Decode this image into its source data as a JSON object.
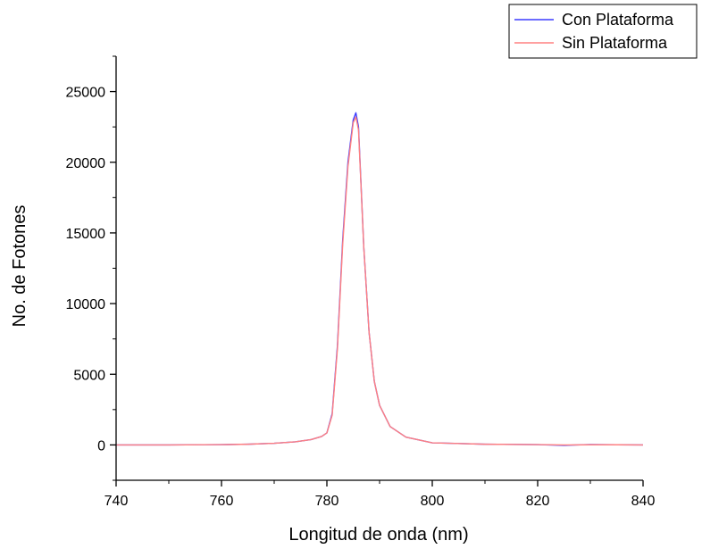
{
  "chart_data": {
    "type": "line",
    "title": "",
    "xlabel": "Longitud de onda (nm)",
    "ylabel": "No. de Fotones",
    "xlim": [
      740,
      840
    ],
    "ylim": [
      -2500,
      27500
    ],
    "xticks": [
      "740",
      "760",
      "780",
      "800",
      "820",
      "840"
    ],
    "yticks": [
      "0",
      "5000",
      "10000",
      "15000",
      "20000",
      "25000"
    ],
    "grid": false,
    "legend_position": "top-right",
    "series": [
      {
        "name": "Con Plataforma",
        "color": "#3b3bff",
        "x": [
          740,
          750,
          760,
          765,
          770,
          774,
          777,
          779,
          780,
          781,
          782,
          783,
          784,
          785,
          785.5,
          786,
          787,
          788,
          789,
          790,
          792,
          795,
          800,
          810,
          820,
          825,
          830,
          835,
          840
        ],
        "y": [
          0,
          0,
          20,
          50,
          120,
          220,
          380,
          600,
          850,
          2200,
          7000,
          14500,
          20000,
          23000,
          23500,
          22500,
          14000,
          8000,
          4500,
          2800,
          1300,
          550,
          150,
          50,
          20,
          -30,
          30,
          10,
          0
        ]
      },
      {
        "name": "Sin Plataforma",
        "color": "#ff8080",
        "x": [
          740,
          750,
          760,
          765,
          770,
          774,
          777,
          779,
          780,
          781,
          782,
          783,
          784,
          785,
          785.5,
          786,
          787,
          788,
          789,
          790,
          792,
          795,
          800,
          810,
          820,
          825,
          830,
          835,
          840
        ],
        "y": [
          0,
          0,
          20,
          50,
          120,
          220,
          380,
          600,
          850,
          2100,
          6800,
          14200,
          19700,
          22800,
          23200,
          22300,
          14000,
          8000,
          4500,
          2800,
          1300,
          550,
          150,
          50,
          20,
          0,
          10,
          10,
          0
        ]
      }
    ]
  }
}
